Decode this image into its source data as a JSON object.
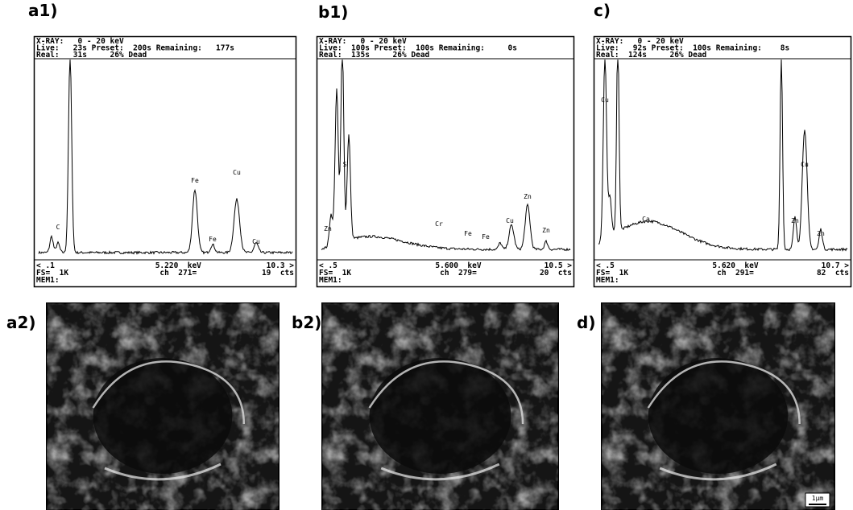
{
  "panels": [
    {
      "label": "a1)",
      "header": [
        "X-RAY:   0 - 20 keV",
        "Live:   23s Preset:  200s Remaining:   177s",
        "Real:   31s     26% Dead"
      ],
      "footer": [
        [
          "< .1",
          "5.220  keV",
          "10.3 >"
        ],
        [
          "FS=  1K",
          "ch  271=",
          "19  cts"
        ],
        [
          "MEM1:"
        ]
      ],
      "peaks": [
        "C",
        "Fe",
        "Fe",
        "Cu",
        "Cu"
      ]
    },
    {
      "label": "b1)",
      "header": [
        "X-RAY:   0 - 20 keV",
        "Live:  100s Preset:  100s Remaining:     0s",
        "Real:  135s     26% Dead"
      ],
      "footer": [
        [
          "< .5",
          "5.600  keV",
          "10.5 >"
        ],
        [
          "FS=  1K",
          "ch  279=",
          "20  cts"
        ],
        [
          "MEM1:"
        ]
      ],
      "peaks": [
        "Zn",
        "S",
        "Cr",
        "Fe",
        "Fe",
        "Cu",
        "Zn",
        "Zn"
      ]
    },
    {
      "label": "c)",
      "header": [
        "X-RAY:   0 - 20 keV",
        "Live:   92s Preset:  100s Remaining:    8s",
        "Real:  124s     26% Dead"
      ],
      "footer": [
        [
          "< .5",
          "5.620  keV",
          "10.7 >"
        ],
        [
          "FS=  1K",
          "ch  291=",
          "82  cts"
        ],
        [
          "MEM1:"
        ]
      ],
      "peaks": [
        "Cu",
        "Ca",
        "Cu",
        "Zn",
        "Zn"
      ]
    }
  ],
  "images": [
    {
      "label": "a2)"
    },
    {
      "label": "b2)"
    },
    {
      "label": "d)",
      "scale_bar": "1µm"
    }
  ]
}
